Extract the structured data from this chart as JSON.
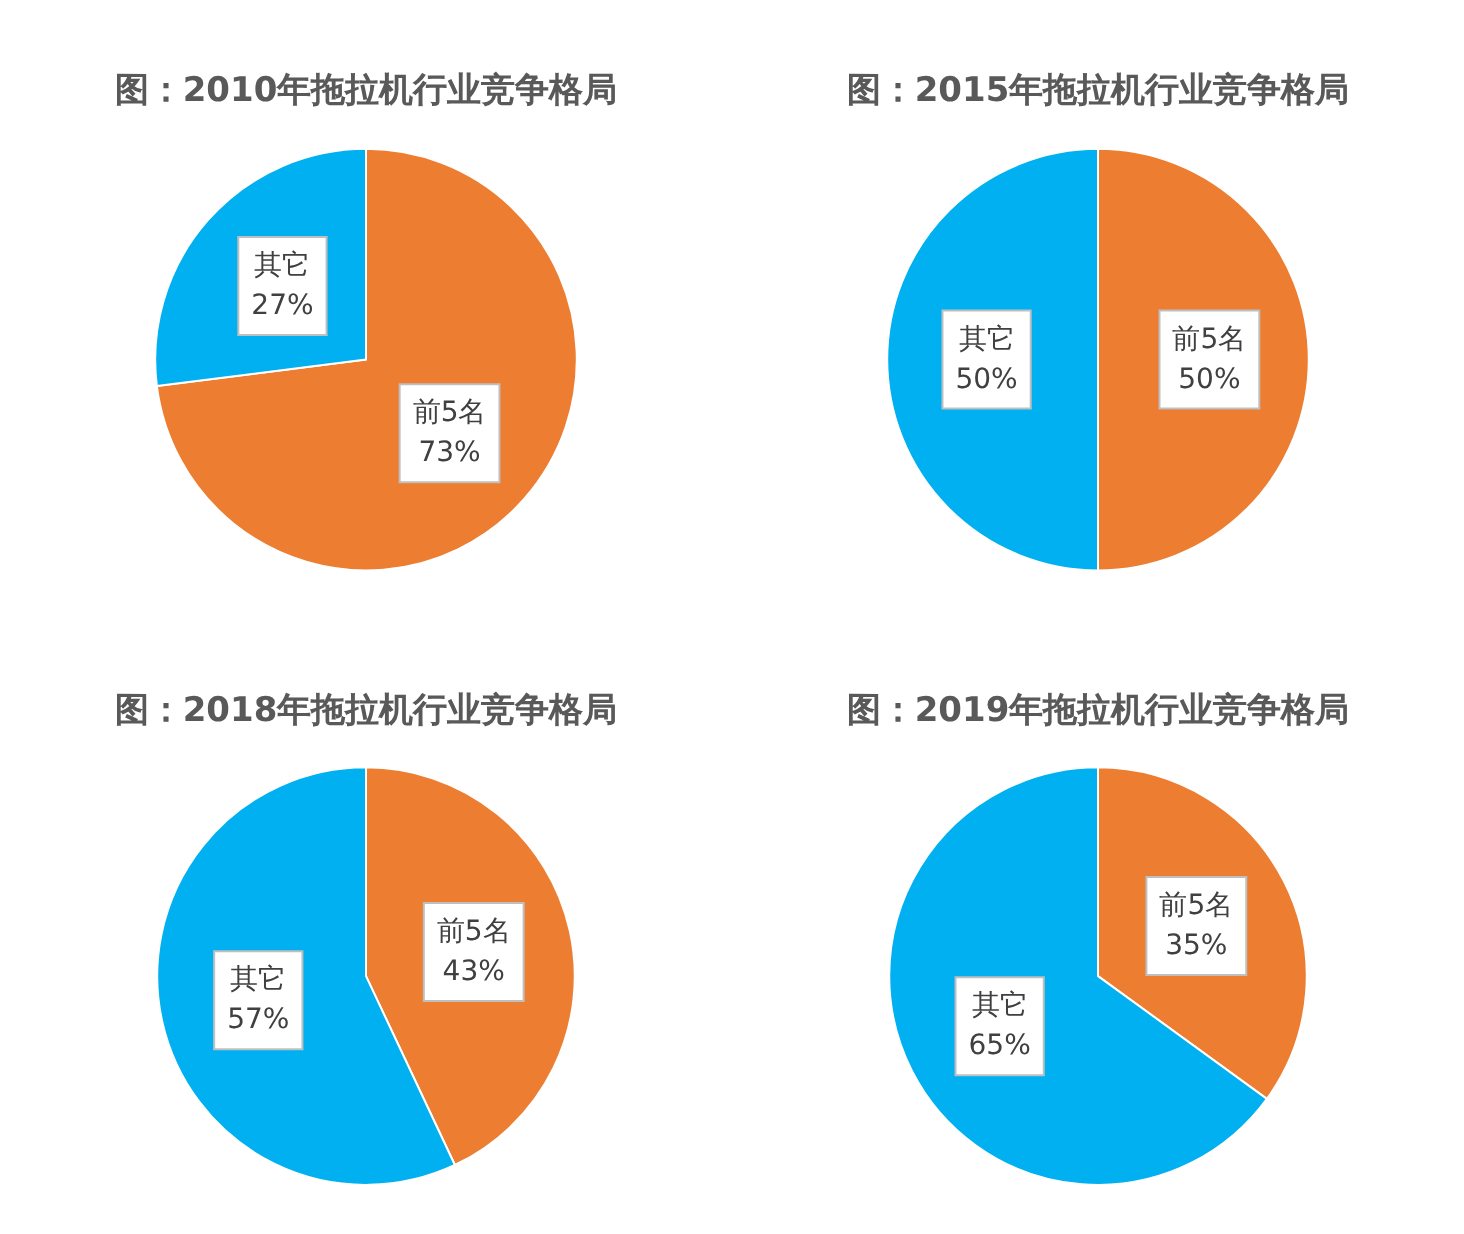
{
  "chart_data": [
    {
      "type": "pie",
      "title": "图：2010年拖拉机行业竞争格局",
      "categories": [
        "前5名",
        "其它"
      ],
      "values": [
        73,
        27
      ],
      "colors": [
        "#ed7d31",
        "#00b0f0"
      ],
      "value_labels": [
        "73%",
        "27%"
      ],
      "legend": false
    },
    {
      "type": "pie",
      "title": "图：2015年拖拉机行业竞争格局",
      "categories": [
        "前5名",
        "其它"
      ],
      "values": [
        50,
        50
      ],
      "colors": [
        "#ed7d31",
        "#00b0f0"
      ],
      "value_labels": [
        "50%",
        "50%"
      ],
      "legend": false
    },
    {
      "type": "pie",
      "title": "图：2018年拖拉机行业竞争格局",
      "categories": [
        "前5名",
        "其它"
      ],
      "values": [
        43,
        57
      ],
      "colors": [
        "#ed7d31",
        "#00b0f0"
      ],
      "value_labels": [
        "43%",
        "57%"
      ],
      "legend": false
    },
    {
      "type": "pie",
      "title": "图：2019年拖拉机行业竞争格局",
      "categories": [
        "前5名",
        "其它"
      ],
      "values": [
        35,
        65
      ],
      "colors": [
        "#ed7d31",
        "#00b0f0"
      ],
      "value_labels": [
        "35%",
        "65%"
      ],
      "legend": false
    }
  ]
}
